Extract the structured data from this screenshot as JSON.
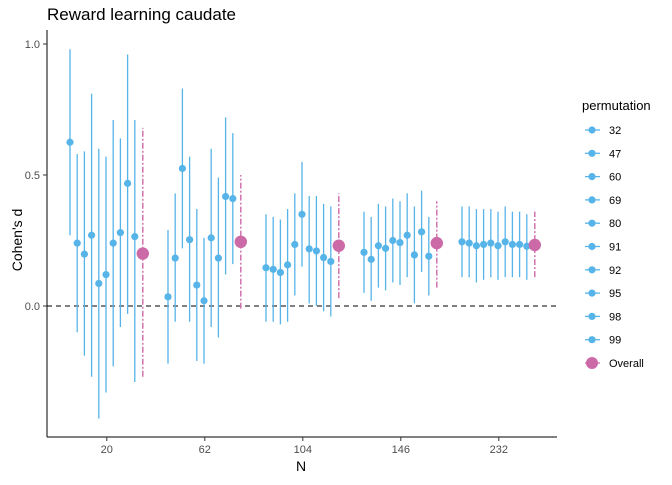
{
  "chart_data": {
    "type": "scatter",
    "title": "Reward learning caudate",
    "xlabel": "N",
    "ylabel": "Cohen's d",
    "x_categories": [
      "20",
      "62",
      "104",
      "146",
      "232"
    ],
    "y_ticks": [
      0.0,
      0.5,
      1.0
    ],
    "y_tick_labels": [
      "0.0",
      "0.5",
      "1.0"
    ],
    "ylim": [
      -0.49,
      1.04
    ],
    "reference_line": {
      "y": 0,
      "style": "dashed"
    },
    "grid": false,
    "legend": {
      "title": "permutation",
      "position": "right",
      "entries": [
        "32",
        "47",
        "60",
        "69",
        "80",
        "91",
        "92",
        "95",
        "98",
        "99",
        "Overall"
      ]
    },
    "colors": {
      "permutation": "#56b4e9",
      "overall": "#cc6aa8",
      "axis": "#000000"
    },
    "groups": [
      {
        "category": "20",
        "points": [
          {
            "permutation": "32",
            "d": 0.625,
            "lo": 0.27,
            "hi": 0.98
          },
          {
            "permutation": "47",
            "d": 0.24,
            "lo": -0.1,
            "hi": 0.58
          },
          {
            "permutation": "60",
            "d": 0.198,
            "lo": -0.19,
            "hi": 0.59
          },
          {
            "permutation": "69",
            "d": 0.27,
            "lo": -0.27,
            "hi": 0.81
          },
          {
            "permutation": "80",
            "d": 0.086,
            "lo": -0.43,
            "hi": 0.6
          },
          {
            "permutation": "91",
            "d": 0.12,
            "lo": -0.33,
            "hi": 0.57
          },
          {
            "permutation": "92",
            "d": 0.24,
            "lo": -0.23,
            "hi": 0.71
          },
          {
            "permutation": "95",
            "d": 0.28,
            "lo": -0.08,
            "hi": 0.64
          },
          {
            "permutation": "98",
            "d": 0.468,
            "lo": -0.03,
            "hi": 0.96
          },
          {
            "permutation": "99",
            "d": 0.265,
            "lo": -0.29,
            "hi": 0.71
          }
        ],
        "overall": {
          "d": 0.2,
          "lo": -0.27,
          "hi": 0.68
        }
      },
      {
        "category": "62",
        "points": [
          {
            "permutation": "32",
            "d": 0.035,
            "lo": -0.22,
            "hi": 0.29
          },
          {
            "permutation": "47",
            "d": 0.183,
            "lo": -0.06,
            "hi": 0.43
          },
          {
            "permutation": "60",
            "d": 0.525,
            "lo": 0.22,
            "hi": 0.83
          },
          {
            "permutation": "69",
            "d": 0.253,
            "lo": -0.06,
            "hi": 0.57
          },
          {
            "permutation": "80",
            "d": 0.08,
            "lo": -0.21,
            "hi": 0.37
          },
          {
            "permutation": "91",
            "d": 0.02,
            "lo": -0.22,
            "hi": 0.26
          },
          {
            "permutation": "92",
            "d": 0.26,
            "lo": -0.08,
            "hi": 0.6
          },
          {
            "permutation": "95",
            "d": 0.183,
            "lo": -0.12,
            "hi": 0.49
          },
          {
            "permutation": "98",
            "d": 0.418,
            "lo": 0.12,
            "hi": 0.72
          },
          {
            "permutation": "99",
            "d": 0.41,
            "lo": 0.16,
            "hi": 0.66
          }
        ],
        "overall": {
          "d": 0.245,
          "lo": -0.01,
          "hi": 0.5
        }
      },
      {
        "category": "104",
        "points": [
          {
            "permutation": "32",
            "d": 0.146,
            "lo": -0.06,
            "hi": 0.35
          },
          {
            "permutation": "47",
            "d": 0.14,
            "lo": -0.06,
            "hi": 0.34
          },
          {
            "permutation": "60",
            "d": 0.128,
            "lo": -0.07,
            "hi": 0.33
          },
          {
            "permutation": "69",
            "d": 0.157,
            "lo": -0.06,
            "hi": 0.37
          },
          {
            "permutation": "80",
            "d": 0.235,
            "lo": 0.04,
            "hi": 0.43
          },
          {
            "permutation": "91",
            "d": 0.35,
            "lo": 0.15,
            "hi": 0.55
          },
          {
            "permutation": "92",
            "d": 0.218,
            "lo": 0.01,
            "hi": 0.42
          },
          {
            "permutation": "95",
            "d": 0.21,
            "lo": 0.0,
            "hi": 0.42
          },
          {
            "permutation": "98",
            "d": 0.185,
            "lo": -0.02,
            "hi": 0.39
          },
          {
            "permutation": "99",
            "d": 0.17,
            "lo": -0.04,
            "hi": 0.38
          }
        ],
        "overall": {
          "d": 0.23,
          "lo": 0.03,
          "hi": 0.43
        }
      },
      {
        "category": "146",
        "points": [
          {
            "permutation": "32",
            "d": 0.205,
            "lo": 0.05,
            "hi": 0.36
          },
          {
            "permutation": "47",
            "d": 0.178,
            "lo": 0.02,
            "hi": 0.34
          },
          {
            "permutation": "60",
            "d": 0.23,
            "lo": 0.07,
            "hi": 0.39
          },
          {
            "permutation": "69",
            "d": 0.22,
            "lo": 0.06,
            "hi": 0.38
          },
          {
            "permutation": "80",
            "d": 0.25,
            "lo": 0.09,
            "hi": 0.41
          },
          {
            "permutation": "91",
            "d": 0.242,
            "lo": 0.08,
            "hi": 0.4
          },
          {
            "permutation": "92",
            "d": 0.27,
            "lo": 0.11,
            "hi": 0.43
          },
          {
            "permutation": "95",
            "d": 0.195,
            "lo": 0.01,
            "hi": 0.38
          },
          {
            "permutation": "98",
            "d": 0.283,
            "lo": 0.13,
            "hi": 0.44
          },
          {
            "permutation": "99",
            "d": 0.19,
            "lo": 0.04,
            "hi": 0.34
          }
        ],
        "overall": {
          "d": 0.24,
          "lo": 0.07,
          "hi": 0.4
        }
      },
      {
        "category": "232",
        "points": [
          {
            "permutation": "32",
            "d": 0.245,
            "lo": 0.11,
            "hi": 0.38
          },
          {
            "permutation": "47",
            "d": 0.24,
            "lo": 0.11,
            "hi": 0.38
          },
          {
            "permutation": "60",
            "d": 0.23,
            "lo": 0.09,
            "hi": 0.37
          },
          {
            "permutation": "69",
            "d": 0.235,
            "lo": 0.1,
            "hi": 0.37
          },
          {
            "permutation": "80",
            "d": 0.24,
            "lo": 0.11,
            "hi": 0.37
          },
          {
            "permutation": "91",
            "d": 0.23,
            "lo": 0.1,
            "hi": 0.36
          },
          {
            "permutation": "92",
            "d": 0.245,
            "lo": 0.11,
            "hi": 0.38
          },
          {
            "permutation": "95",
            "d": 0.235,
            "lo": 0.11,
            "hi": 0.36
          },
          {
            "permutation": "98",
            "d": 0.235,
            "lo": 0.11,
            "hi": 0.36
          },
          {
            "permutation": "99",
            "d": 0.228,
            "lo": 0.1,
            "hi": 0.35
          }
        ],
        "overall": {
          "d": 0.233,
          "lo": 0.11,
          "hi": 0.36
        }
      }
    ]
  }
}
